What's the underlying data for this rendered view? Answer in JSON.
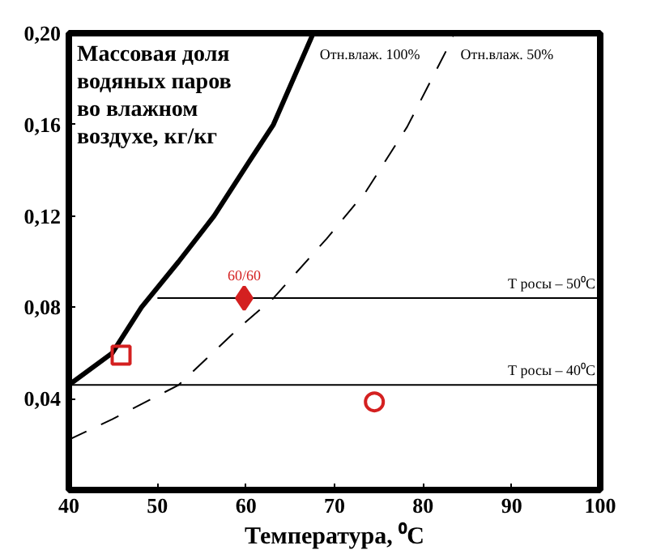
{
  "chart_data": {
    "type": "line",
    "title": "Массовая доля водяных паров во влажном воздухе, кг/кг",
    "xlabel": "Температура, ⁰С",
    "xlim": [
      40,
      100
    ],
    "ylim": [
      0,
      0.2
    ],
    "xticks": [
      40,
      50,
      60,
      70,
      80,
      90,
      100
    ],
    "yticks": [
      {
        "value": 0.04,
        "label": "0,04"
      },
      {
        "value": 0.08,
        "label": "0,08"
      },
      {
        "value": 0.12,
        "label": "0,12"
      },
      {
        "value": 0.16,
        "label": "0,16"
      },
      {
        "value": 0.2,
        "label": "0,20"
      }
    ],
    "grid": false,
    "series": [
      {
        "name": "Отн.влаж. 100%",
        "color": "#000000",
        "line_style": "solid",
        "x": [
          40,
          44.9,
          48.2,
          52.4,
          56.4,
          60.4,
          63.1,
          67.6
        ],
        "values": [
          0.046,
          0.06,
          0.08,
          0.1,
          0.12,
          0.144,
          0.16,
          0.2
        ]
      },
      {
        "name": "Отн.влаж. 50%",
        "color": "#000000",
        "line_style": "dashed",
        "x": [
          40,
          44.9,
          52.4,
          59.5,
          63.1,
          69.1,
          73.6,
          78.2,
          83.1,
          83.5
        ],
        "values": [
          0.022,
          0.031,
          0.046,
          0.072,
          0.084,
          0.11,
          0.131,
          0.159,
          0.196,
          0.2
        ]
      },
      {
        "name": "Т росы – 50⁰С",
        "color": "#000000",
        "line_style": "solid",
        "x": [
          50,
          100
        ],
        "values": [
          0.084,
          0.084
        ]
      },
      {
        "name": "Т росы – 40⁰С",
        "color": "#000000",
        "line_style": "solid",
        "x": [
          40,
          100
        ],
        "values": [
          0.046,
          0.046
        ]
      },
      {
        "type": "scatter",
        "name": "60/60",
        "color": "#d42020",
        "marker": "diamond",
        "x": [
          59.8
        ],
        "values": [
          0.084
        ]
      },
      {
        "type": "scatter",
        "color": "#d42020",
        "marker": "square",
        "x": [
          45.9
        ],
        "values": [
          0.059
        ]
      },
      {
        "type": "scatter",
        "color": "#d42020",
        "marker": "circle",
        "x": [
          74.5
        ],
        "values": [
          0.0386
        ]
      }
    ]
  }
}
